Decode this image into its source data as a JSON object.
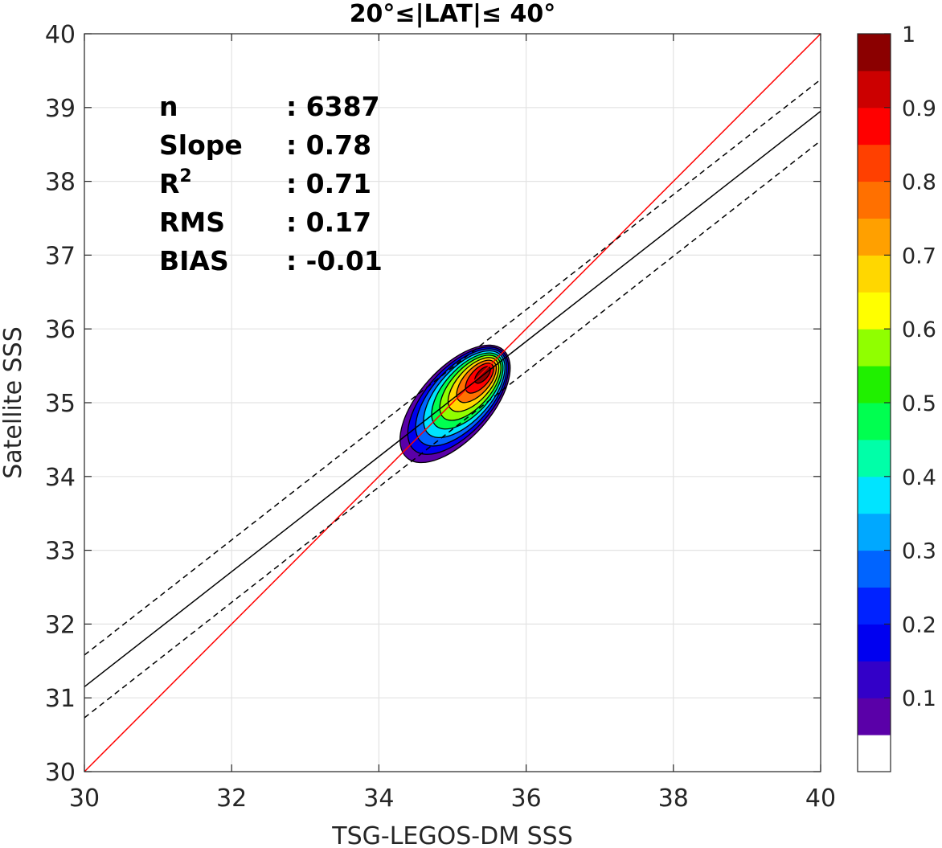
{
  "chart_data": {
    "type": "contour",
    "title": "20°≤|LAT|≤ 40°",
    "xlabel": "TSG-LEGOS-DM SSS",
    "ylabel": "Satellite SSS",
    "xlim": [
      30,
      40
    ],
    "ylim": [
      30,
      40
    ],
    "xticks": [
      "30",
      "32",
      "34",
      "36",
      "38",
      "40"
    ],
    "yticks": [
      "30",
      "31",
      "32",
      "33",
      "34",
      "35",
      "36",
      "37",
      "38",
      "39",
      "40"
    ],
    "grid": true,
    "stats": [
      {
        "key": "n",
        "sep": ":",
        "value": "6387"
      },
      {
        "key": "Slope",
        "sep": ":",
        "value": "0.78"
      },
      {
        "key": "R",
        "sup": "2",
        "sep": ":",
        "value": "0.71"
      },
      {
        "key": "RMS",
        "sep": ":",
        "value": "0.17"
      },
      {
        "key": "BIAS",
        "sep": ":",
        "value": "-0.01"
      }
    ],
    "lines": [
      {
        "kind": "identity",
        "color": "#ff0000",
        "style": "solid",
        "x": [
          30,
          40
        ],
        "y": [
          30,
          40
        ]
      },
      {
        "kind": "regression",
        "color": "#000000",
        "style": "solid",
        "x": [
          30,
          40
        ],
        "y": [
          31.15,
          38.95
        ]
      },
      {
        "kind": "upper-bound",
        "color": "#000000",
        "style": "dashed",
        "x": [
          30,
          40
        ],
        "y": [
          31.58,
          39.38
        ]
      },
      {
        "kind": "lower-bound",
        "color": "#000000",
        "style": "dashed",
        "x": [
          30,
          40
        ],
        "y": [
          30.73,
          38.55
        ]
      }
    ],
    "density_peak": {
      "x": 35.45,
      "y": 35.42
    },
    "contour_levels": [
      0.05,
      0.1,
      0.2,
      0.3,
      0.4,
      0.5,
      0.6,
      0.7,
      0.8,
      0.9
    ],
    "colorbar": {
      "range": [
        0,
        1
      ],
      "ticks": [
        "0.1",
        "0.2",
        "0.3",
        "0.4",
        "0.5",
        "0.6",
        "0.7",
        "0.8",
        "0.9",
        "1"
      ],
      "bands": [
        "#ffffff",
        "#5a00a8",
        "#3300c8",
        "#0000f0",
        "#0022ff",
        "#0064ff",
        "#00a8ff",
        "#00e4ff",
        "#00ffa8",
        "#00ff50",
        "#20f000",
        "#90ff00",
        "#ffff00",
        "#ffd700",
        "#ffa000",
        "#ff7000",
        "#ff4000",
        "#ff0000",
        "#cc0000",
        "#8b0000"
      ]
    }
  }
}
